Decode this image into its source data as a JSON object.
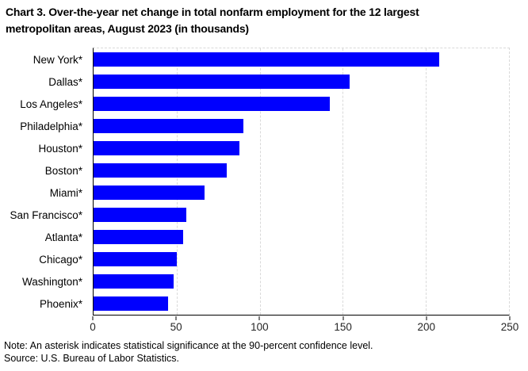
{
  "title_lines": [
    "Chart 3. Over-the-year net change in total nonfarm employment for the 12 largest",
    "metropolitan areas, August 2023 (in thousands)"
  ],
  "notes": {
    "note": "Note: An asterisk indicates statistical significance at the 90-percent confidence level.",
    "source": "Source: U.S. Bureau of Labor Statistics."
  },
  "colors": {
    "bar": "#0000fe",
    "gridline": "#d9d9d9",
    "axis": "#000000"
  },
  "chart_data": {
    "type": "bar",
    "orientation": "horizontal",
    "title": "Chart 3. Over-the-year net change in total nonfarm employment for the 12 largest metropolitan areas, August 2023 (in thousands)",
    "categories": [
      "New York*",
      "Dallas*",
      "Los Angeles*",
      "Philadelphia*",
      "Houston*",
      "Boston*",
      "Miami*",
      "San Francisco*",
      "Atlanta*",
      "Chicago*",
      "Washington*",
      "Phoenix*"
    ],
    "values": [
      208,
      154,
      142,
      90,
      88,
      80,
      67,
      56,
      54,
      50,
      48,
      45
    ],
    "xlabel": "",
    "ylabel": "",
    "xlim": [
      0,
      250
    ],
    "xticks": [
      0,
      50,
      100,
      150,
      200,
      250
    ],
    "grid": "vertical-dashed",
    "legend": "none"
  }
}
